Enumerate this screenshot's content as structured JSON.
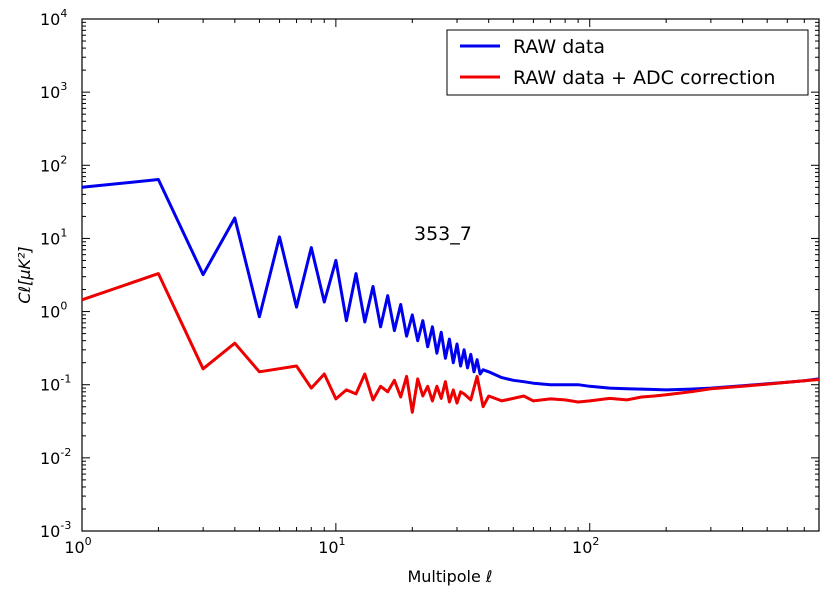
{
  "chart_data": {
    "type": "line",
    "title": "",
    "xlabel": "Multipole ℓ",
    "ylabel": "Cℓ[μK²]",
    "xscale": "log",
    "yscale": "log",
    "xlim": [
      1,
      800
    ],
    "ylim": [
      0.001,
      10000
    ],
    "grid": false,
    "legend_position": "top-right",
    "annotation": "353_7",
    "x_ticks": [
      {
        "base": "10",
        "exp": "0",
        "value": 1
      },
      {
        "base": "10",
        "exp": "1",
        "value": 10
      },
      {
        "base": "10",
        "exp": "2",
        "value": 100
      }
    ],
    "y_ticks": [
      {
        "base": "10",
        "exp": "-3",
        "value": 0.001
      },
      {
        "base": "10",
        "exp": "-2",
        "value": 0.01
      },
      {
        "base": "10",
        "exp": "-1",
        "value": 0.1
      },
      {
        "base": "10",
        "exp": "0",
        "value": 1
      },
      {
        "base": "10",
        "exp": "1",
        "value": 10
      },
      {
        "base": "10",
        "exp": "2",
        "value": 100
      },
      {
        "base": "10",
        "exp": "3",
        "value": 1000
      },
      {
        "base": "10",
        "exp": "4",
        "value": 10000
      }
    ],
    "series": [
      {
        "name": "RAW data",
        "color": "#0000ee",
        "x": [
          1,
          2,
          3,
          4,
          5,
          6,
          7,
          8,
          9,
          10,
          11,
          12,
          13,
          14,
          15,
          16,
          17,
          18,
          19,
          20,
          21,
          22,
          23,
          24,
          25,
          26,
          27,
          28,
          29,
          30,
          31,
          32,
          33,
          34,
          35,
          36,
          37,
          38,
          40,
          45,
          50,
          55,
          60,
          70,
          80,
          90,
          100,
          120,
          140,
          160,
          180,
          200,
          250,
          300,
          400,
          500,
          600,
          700,
          800
        ],
        "y": [
          50,
          64,
          3.2,
          19,
          0.85,
          10.5,
          1.15,
          7.5,
          1.35,
          5.0,
          0.75,
          3.3,
          0.72,
          2.2,
          0.62,
          1.65,
          0.55,
          1.25,
          0.46,
          0.9,
          0.4,
          0.75,
          0.33,
          0.62,
          0.27,
          0.52,
          0.23,
          0.42,
          0.2,
          0.36,
          0.18,
          0.3,
          0.17,
          0.26,
          0.15,
          0.22,
          0.14,
          0.16,
          0.15,
          0.125,
          0.115,
          0.11,
          0.105,
          0.1,
          0.1,
          0.1,
          0.095,
          0.09,
          0.088,
          0.087,
          0.086,
          0.085,
          0.087,
          0.09,
          0.097,
          0.103,
          0.108,
          0.113,
          0.12
        ]
      },
      {
        "name": "RAW data + ADC correction",
        "color": "#ee0000",
        "x": [
          1,
          2,
          3,
          4,
          5,
          7,
          8,
          9,
          10,
          11,
          12,
          13,
          14,
          15,
          16,
          17,
          18,
          19,
          20,
          21,
          22,
          23,
          24,
          25,
          26,
          27,
          28,
          29,
          30,
          31,
          32,
          34,
          36,
          38,
          40,
          45,
          50,
          55,
          60,
          70,
          80,
          90,
          100,
          120,
          140,
          160,
          180,
          200,
          250,
          300,
          400,
          500,
          600,
          700,
          800
        ],
        "y": [
          1.45,
          3.3,
          0.165,
          0.37,
          0.15,
          0.18,
          0.09,
          0.14,
          0.064,
          0.085,
          0.075,
          0.14,
          0.062,
          0.095,
          0.08,
          0.115,
          0.068,
          0.13,
          0.042,
          0.12,
          0.07,
          0.095,
          0.06,
          0.095,
          0.065,
          0.11,
          0.058,
          0.085,
          0.056,
          0.08,
          0.075,
          0.062,
          0.13,
          0.05,
          0.07,
          0.06,
          0.065,
          0.07,
          0.06,
          0.064,
          0.062,
          0.058,
          0.06,
          0.065,
          0.062,
          0.068,
          0.07,
          0.073,
          0.08,
          0.088,
          0.095,
          0.102,
          0.108,
          0.113,
          0.118
        ]
      }
    ]
  }
}
